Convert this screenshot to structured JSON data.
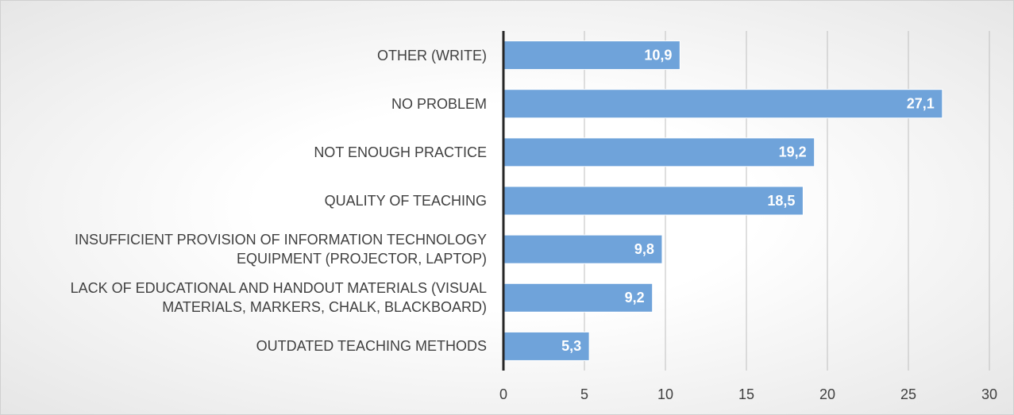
{
  "chart_data": {
    "type": "bar",
    "orientation": "horizontal",
    "categories": [
      "OTHER (WRITE)",
      "NO PROBLEM",
      "NOT ENOUGH PRACTICE",
      "QUALITY OF TEACHING",
      "INSUFFICIENT PROVISION OF INFORMATION TECHNOLOGY EQUIPMENT (PROJECTOR, LAPTOP)",
      "LACK OF EDUCATIONAL AND HANDOUT MATERIALS (VISUAL MATERIALS, MARKERS, CHALK, BLACKBOARD)",
      "OUTDATED TEACHING METHODS"
    ],
    "values": [
      10.9,
      27.1,
      19.2,
      18.5,
      9.8,
      9.2,
      5.3
    ],
    "value_labels": [
      "10,9",
      "27,1",
      "19,2",
      "18,5",
      "9,8",
      "9,2",
      "5,3"
    ],
    "color": "#6fa3da",
    "xlim": [
      0,
      30
    ],
    "xticks": [
      0,
      5,
      10,
      15,
      20,
      25,
      30
    ],
    "grid": true
  }
}
